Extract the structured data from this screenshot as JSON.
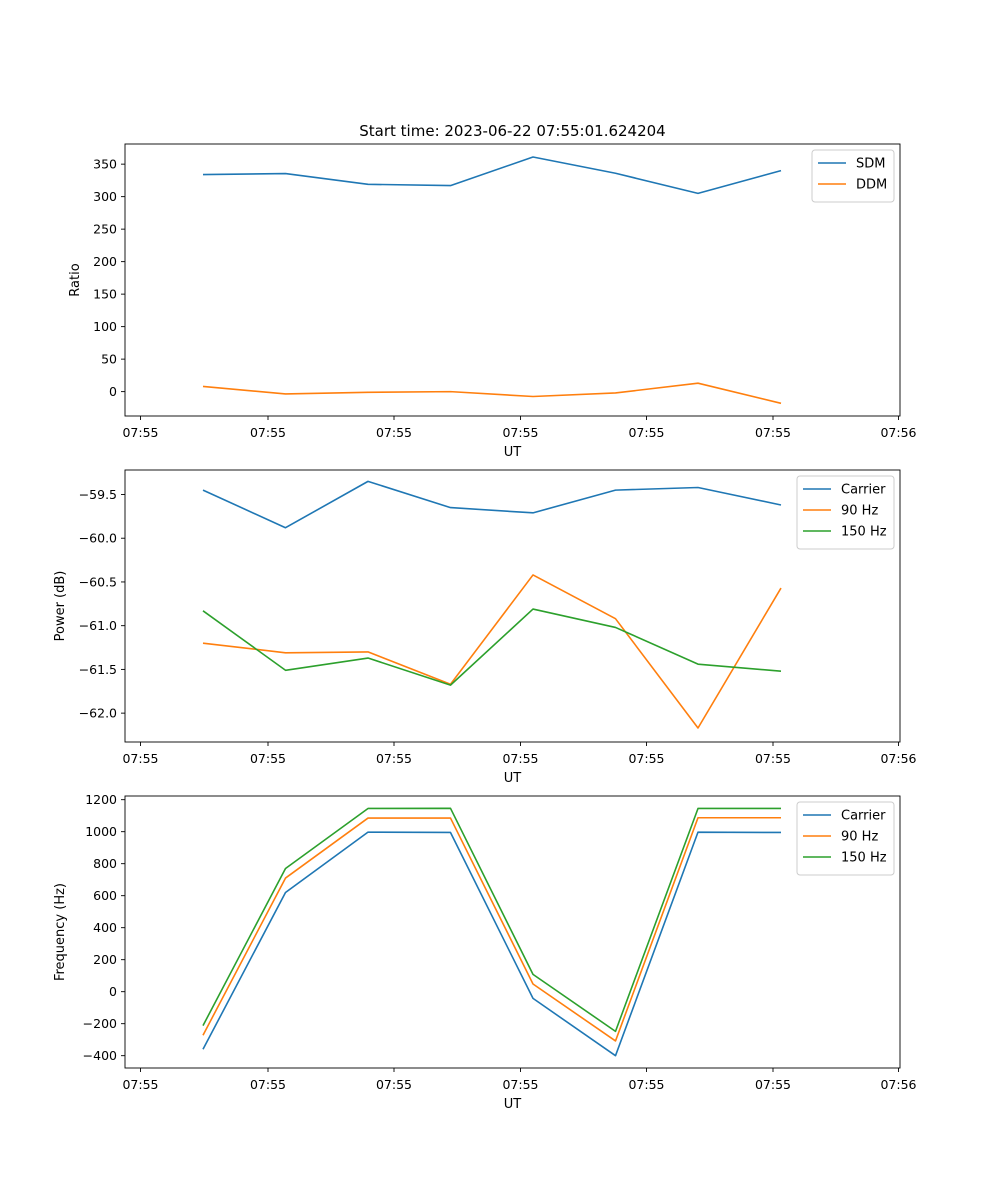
{
  "figure": {
    "title": "Start time: 2023-06-22 07:55:01.624204"
  },
  "chart_data": [
    {
      "type": "line",
      "title": "Start time: 2023-06-22 07:55:01.624204",
      "xlabel": "UT",
      "ylabel": "Ratio",
      "x_ticks": [
        "07:55",
        "07:55",
        "07:55",
        "07:55",
        "07:55",
        "07:55",
        "07:55"
      ],
      "x_last_tick": "07:56",
      "y_ticks": [
        0,
        50,
        100,
        150,
        200,
        250,
        300,
        350
      ],
      "ylim": [
        -37.5,
        381
      ],
      "grid": false,
      "legend": "top-right",
      "series": [
        {
          "name": "SDM",
          "color": "#1f77b4",
          "values": [
            334,
            335.5,
            319,
            317,
            361,
            336,
            305,
            340
          ]
        },
        {
          "name": "DDM",
          "color": "#ff7f0e",
          "values": [
            8,
            -3.5,
            -1,
            0,
            -7.5,
            -2,
            13,
            -18
          ]
        }
      ]
    },
    {
      "type": "line",
      "xlabel": "UT",
      "ylabel": "Power (dB)",
      "x_ticks": [
        "07:55",
        "07:55",
        "07:55",
        "07:55",
        "07:55",
        "07:55",
        "07:55"
      ],
      "x_last_tick": "07:56",
      "y_ticks": [
        -59.5,
        -60.0,
        -60.5,
        -61.0,
        -61.5,
        -62.0
      ],
      "ylim": [
        -62.33,
        -59.22
      ],
      "grid": false,
      "legend": "top-right",
      "series": [
        {
          "name": "Carrier",
          "color": "#1f77b4",
          "values": [
            -59.45,
            -59.88,
            -59.35,
            -59.65,
            -59.71,
            -59.45,
            -59.42,
            -59.62
          ]
        },
        {
          "name": "90 Hz",
          "color": "#ff7f0e",
          "values": [
            -61.2,
            -61.31,
            -61.3,
            -61.67,
            -60.42,
            -60.92,
            -62.17,
            -60.57
          ]
        },
        {
          "name": "150 Hz",
          "color": "#2ca02c",
          "values": [
            -60.83,
            -61.51,
            -61.37,
            -61.68,
            -60.81,
            -61.02,
            -61.44,
            -61.52
          ]
        }
      ]
    },
    {
      "type": "line",
      "xlabel": "UT",
      "ylabel": "Frequency (Hz)",
      "x_ticks": [
        "07:55",
        "07:55",
        "07:55",
        "07:55",
        "07:55",
        "07:55",
        "07:55"
      ],
      "x_last_tick": "07:56",
      "y_ticks": [
        -400,
        -200,
        0,
        200,
        400,
        600,
        800,
        1000,
        1200
      ],
      "ylim": [
        -477,
        1223
      ],
      "grid": false,
      "legend": "top-right",
      "series": [
        {
          "name": "Carrier",
          "color": "#1f77b4",
          "values": [
            -360,
            620,
            997,
            995,
            -42,
            -400,
            997,
            995
          ]
        },
        {
          "name": "90 Hz",
          "color": "#ff7f0e",
          "values": [
            -272,
            710,
            1085,
            1085,
            48,
            -308,
            1087,
            1087
          ]
        },
        {
          "name": "150 Hz",
          "color": "#2ca02c",
          "values": [
            -212,
            770,
            1145,
            1146,
            108,
            -248,
            1145,
            1145
          ]
        }
      ]
    }
  ]
}
